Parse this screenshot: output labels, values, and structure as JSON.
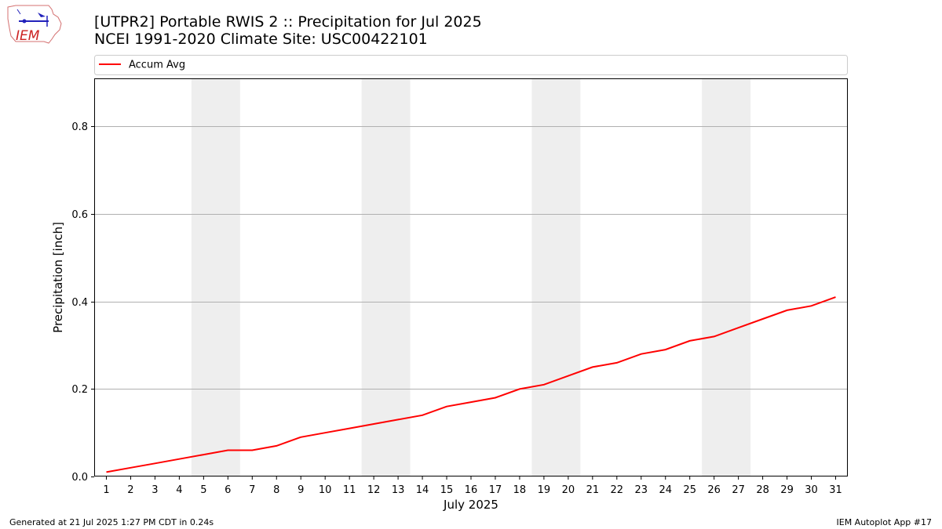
{
  "logo": {
    "text": "IEM"
  },
  "title": {
    "line1": "[UTPR2] Portable RWIS 2  :: Precipitation for Jul 2025",
    "line2": "NCEI 1991-2020 Climate Site: USC00422101"
  },
  "footer": {
    "left": "Generated at 21 Jul 2025 1:27 PM CDT in 0.24s",
    "right": "IEM Autoplot App #17"
  },
  "colors": {
    "line": "#ff0000",
    "weekend": "#eeeeee",
    "grid": "#b0b0b0"
  },
  "chart_data": {
    "type": "line",
    "xlabel": "July 2025",
    "ylabel": "Precipitation [inch]",
    "x": [
      1,
      2,
      3,
      4,
      5,
      6,
      7,
      8,
      9,
      10,
      11,
      12,
      13,
      14,
      15,
      16,
      17,
      18,
      19,
      20,
      21,
      22,
      23,
      24,
      25,
      26,
      27,
      28,
      29,
      30,
      31
    ],
    "series": [
      {
        "name": "Accum Avg",
        "values": [
          0.01,
          0.02,
          0.03,
          0.04,
          0.05,
          0.06,
          0.06,
          0.07,
          0.09,
          0.1,
          0.11,
          0.12,
          0.13,
          0.14,
          0.16,
          0.17,
          0.18,
          0.2,
          0.21,
          0.23,
          0.25,
          0.26,
          0.28,
          0.29,
          0.31,
          0.32,
          0.34,
          0.36,
          0.38,
          0.39,
          0.41
        ]
      }
    ],
    "yticks": [
      0.0,
      0.2,
      0.4,
      0.6,
      0.8
    ],
    "ytick_labels": [
      "0.0",
      "0.2",
      "0.4",
      "0.6",
      "0.8"
    ],
    "xlim": [
      0.5,
      31.5
    ],
    "ylim": [
      0,
      0.91
    ],
    "weekend_bands": [
      [
        5,
        6
      ],
      [
        12,
        13
      ],
      [
        19,
        20
      ],
      [
        26,
        27
      ]
    ],
    "grid": "y-major",
    "legend": "top-left, above plot"
  }
}
